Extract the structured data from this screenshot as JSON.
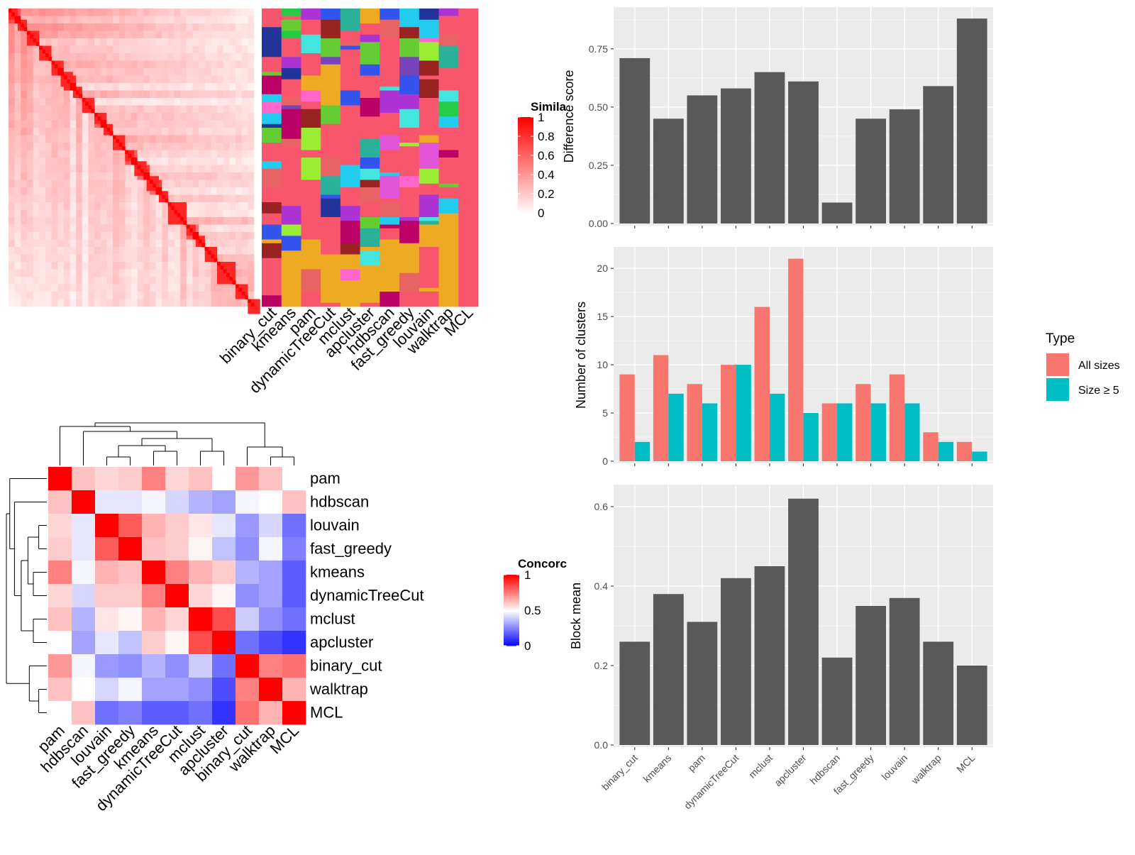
{
  "methods": [
    "binary_cut",
    "kmeans",
    "pam",
    "dynamicTreeCut",
    "mclust",
    "apcluster",
    "hdbscan",
    "fast_greedy",
    "louvain",
    "walktrap",
    "MCL"
  ],
  "colors": {
    "panel_bg": "#EBEBEB",
    "grid_major": "#FFFFFF",
    "bar_dark": "#595959",
    "all_sizes": "#F8766D",
    "size_ge5": "#00BFC4",
    "similarity_high": "#FF0000",
    "similarity_low": "#FFFFFF",
    "concordance_high": "#FF0000",
    "concordance_mid": "#FFFFFF",
    "concordance_low": "#0000FF"
  },
  "similarity_heatmap": {
    "legend_title": "Simila",
    "legend_ticks": [
      "1",
      "0.8",
      "0.6",
      "0.4",
      "0.2",
      "0"
    ],
    "n_terms": 80,
    "block_sizes": [
      3,
      3,
      4,
      4,
      3,
      4,
      3,
      4,
      3,
      3,
      4,
      3,
      4,
      4,
      3,
      6,
      3,
      3,
      4,
      6,
      4,
      4
    ]
  },
  "cluster_label_columns": [
    "binary_cut",
    "kmeans",
    "pam",
    "dynamicTreeCut",
    "mclust",
    "apcluster",
    "hdbscan",
    "fast_greedy",
    "louvain",
    "walktrap",
    "MCL"
  ],
  "concordance_heatmap": {
    "legend_title": "Concorc",
    "legend_ticks": [
      "1",
      "0.5",
      "0"
    ],
    "order": [
      "pam",
      "hdbscan",
      "louvain",
      "fast_greedy",
      "kmeans",
      "dynamicTreeCut",
      "mclust",
      "apcluster",
      "binary_cut",
      "walktrap",
      "MCL"
    ],
    "matrix": [
      [
        1.0,
        0.62,
        0.58,
        0.6,
        0.75,
        0.58,
        0.62,
        0.5,
        0.7,
        0.62,
        0.5
      ],
      [
        0.62,
        1.0,
        0.45,
        0.45,
        0.48,
        0.42,
        0.35,
        0.32,
        0.48,
        0.5,
        0.62
      ],
      [
        0.58,
        0.45,
        1.0,
        0.82,
        0.65,
        0.6,
        0.55,
        0.45,
        0.3,
        0.42,
        0.22
      ],
      [
        0.6,
        0.45,
        0.82,
        1.0,
        0.62,
        0.6,
        0.52,
        0.38,
        0.28,
        0.48,
        0.25
      ],
      [
        0.75,
        0.48,
        0.65,
        0.62,
        1.0,
        0.75,
        0.65,
        0.6,
        0.35,
        0.32,
        0.18
      ],
      [
        0.58,
        0.42,
        0.6,
        0.6,
        0.75,
        1.0,
        0.58,
        0.52,
        0.28,
        0.32,
        0.18
      ],
      [
        0.62,
        0.35,
        0.55,
        0.52,
        0.65,
        0.58,
        1.0,
        0.85,
        0.4,
        0.28,
        0.22
      ],
      [
        0.5,
        0.32,
        0.45,
        0.38,
        0.6,
        0.52,
        0.85,
        1.0,
        0.22,
        0.15,
        0.1
      ],
      [
        0.7,
        0.48,
        0.3,
        0.28,
        0.35,
        0.28,
        0.4,
        0.22,
        1.0,
        0.75,
        0.78
      ],
      [
        0.62,
        0.5,
        0.42,
        0.48,
        0.32,
        0.32,
        0.28,
        0.15,
        0.75,
        1.0,
        0.65
      ],
      [
        0.5,
        0.62,
        0.22,
        0.25,
        0.18,
        0.18,
        0.22,
        0.1,
        0.78,
        0.65,
        1.0
      ]
    ]
  },
  "chart_data": [
    {
      "type": "bar",
      "title": "",
      "xlabel": "",
      "ylabel": "Difference score",
      "categories": [
        "binary_cut",
        "kmeans",
        "pam",
        "dynamicTreeCut",
        "mclust",
        "apcluster",
        "hdbscan",
        "fast_greedy",
        "louvain",
        "walktrap",
        "MCL"
      ],
      "values": [
        0.71,
        0.45,
        0.55,
        0.58,
        0.65,
        0.61,
        0.09,
        0.45,
        0.49,
        0.59,
        0.88
      ],
      "ylim": [
        0,
        0.92
      ],
      "yticks": [
        0,
        0.25,
        0.5,
        0.75
      ],
      "ytick_labels": [
        "0.00",
        "0.25",
        "0.50",
        "0.75"
      ],
      "grid": true
    },
    {
      "type": "bar",
      "title": "",
      "xlabel": "",
      "ylabel": "Number of clusters",
      "categories": [
        "binary_cut",
        "kmeans",
        "pam",
        "dynamicTreeCut",
        "mclust",
        "apcluster",
        "hdbscan",
        "fast_greedy",
        "louvain",
        "walktrap",
        "MCL"
      ],
      "series": [
        {
          "name": "All sizes",
          "values": [
            9,
            11,
            8,
            10,
            16,
            21,
            6,
            8,
            9,
            3,
            2
          ]
        },
        {
          "name": "Size ≥ 5",
          "values": [
            2,
            7,
            6,
            10,
            7,
            5,
            6,
            6,
            6,
            2,
            1
          ]
        }
      ],
      "ylim": [
        0,
        22
      ],
      "yticks": [
        0,
        5,
        10,
        15,
        20
      ],
      "ytick_labels": [
        "0",
        "5",
        "10",
        "15",
        "20"
      ],
      "legend_title": "Type",
      "legend_position": "right",
      "grid": true
    },
    {
      "type": "bar",
      "title": "",
      "xlabel": "",
      "ylabel": "Block mean",
      "categories": [
        "binary_cut",
        "kmeans",
        "pam",
        "dynamicTreeCut",
        "mclust",
        "apcluster",
        "hdbscan",
        "fast_greedy",
        "louvain",
        "walktrap",
        "MCL"
      ],
      "values": [
        0.26,
        0.38,
        0.31,
        0.42,
        0.45,
        0.62,
        0.22,
        0.35,
        0.37,
        0.26,
        0.2
      ],
      "ylim": [
        0,
        0.65
      ],
      "yticks": [
        0,
        0.2,
        0.4,
        0.6
      ],
      "ytick_labels": [
        "0.0",
        "0.2",
        "0.4",
        "0.6"
      ],
      "grid": true
    }
  ]
}
